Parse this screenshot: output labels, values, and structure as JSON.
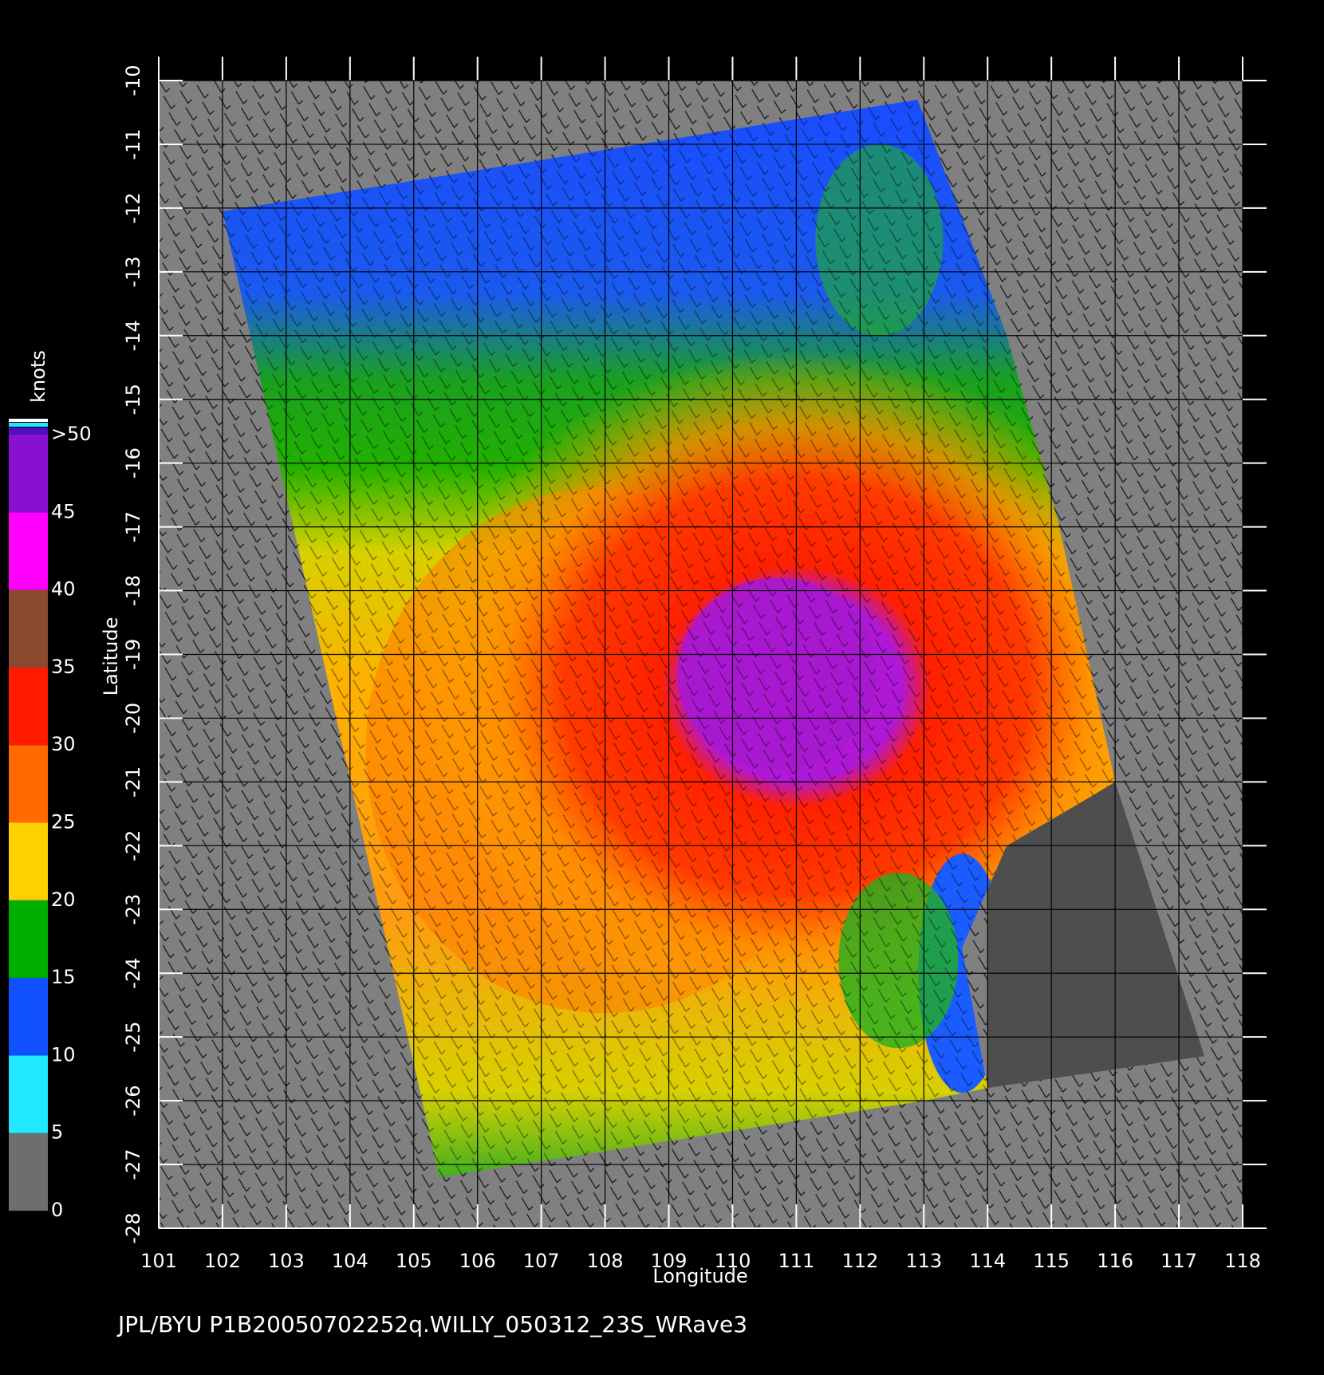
{
  "chart_data": {
    "type": "map",
    "xlabel": "Longitude",
    "ylabel": "Latitude",
    "footer": "JPL/BYU  P1B20050702252q.WILLY_050312_23S_WRave3",
    "xlim": [
      101,
      118
    ],
    "xticks": [
      101,
      102,
      103,
      104,
      105,
      106,
      107,
      108,
      109,
      110,
      111,
      112,
      113,
      114,
      115,
      116,
      117,
      118
    ],
    "ylim": [
      -28,
      -10
    ],
    "yticks": [
      -10,
      -11,
      -12,
      -13,
      -14,
      -15,
      -16,
      -17,
      -18,
      -19,
      -20,
      -21,
      -22,
      -23,
      -24,
      -25,
      -26,
      -27,
      -28
    ],
    "grid": true,
    "colorbar": {
      "title": "knots",
      "lim": [
        0,
        50
      ],
      "ticks": [
        0,
        5,
        10,
        15,
        20,
        25,
        30,
        35,
        40,
        45,
        {
          "value": 50,
          "label": ">50"
        }
      ],
      "colors": [
        "#6e6e6e",
        "#20e8ff",
        "#1050ff",
        "#00b000",
        "#ffd000",
        "#ff6a00",
        "#ff1a00",
        "#8a4a30",
        "#ff00ff",
        "#8a10d0"
      ]
    }
  }
}
